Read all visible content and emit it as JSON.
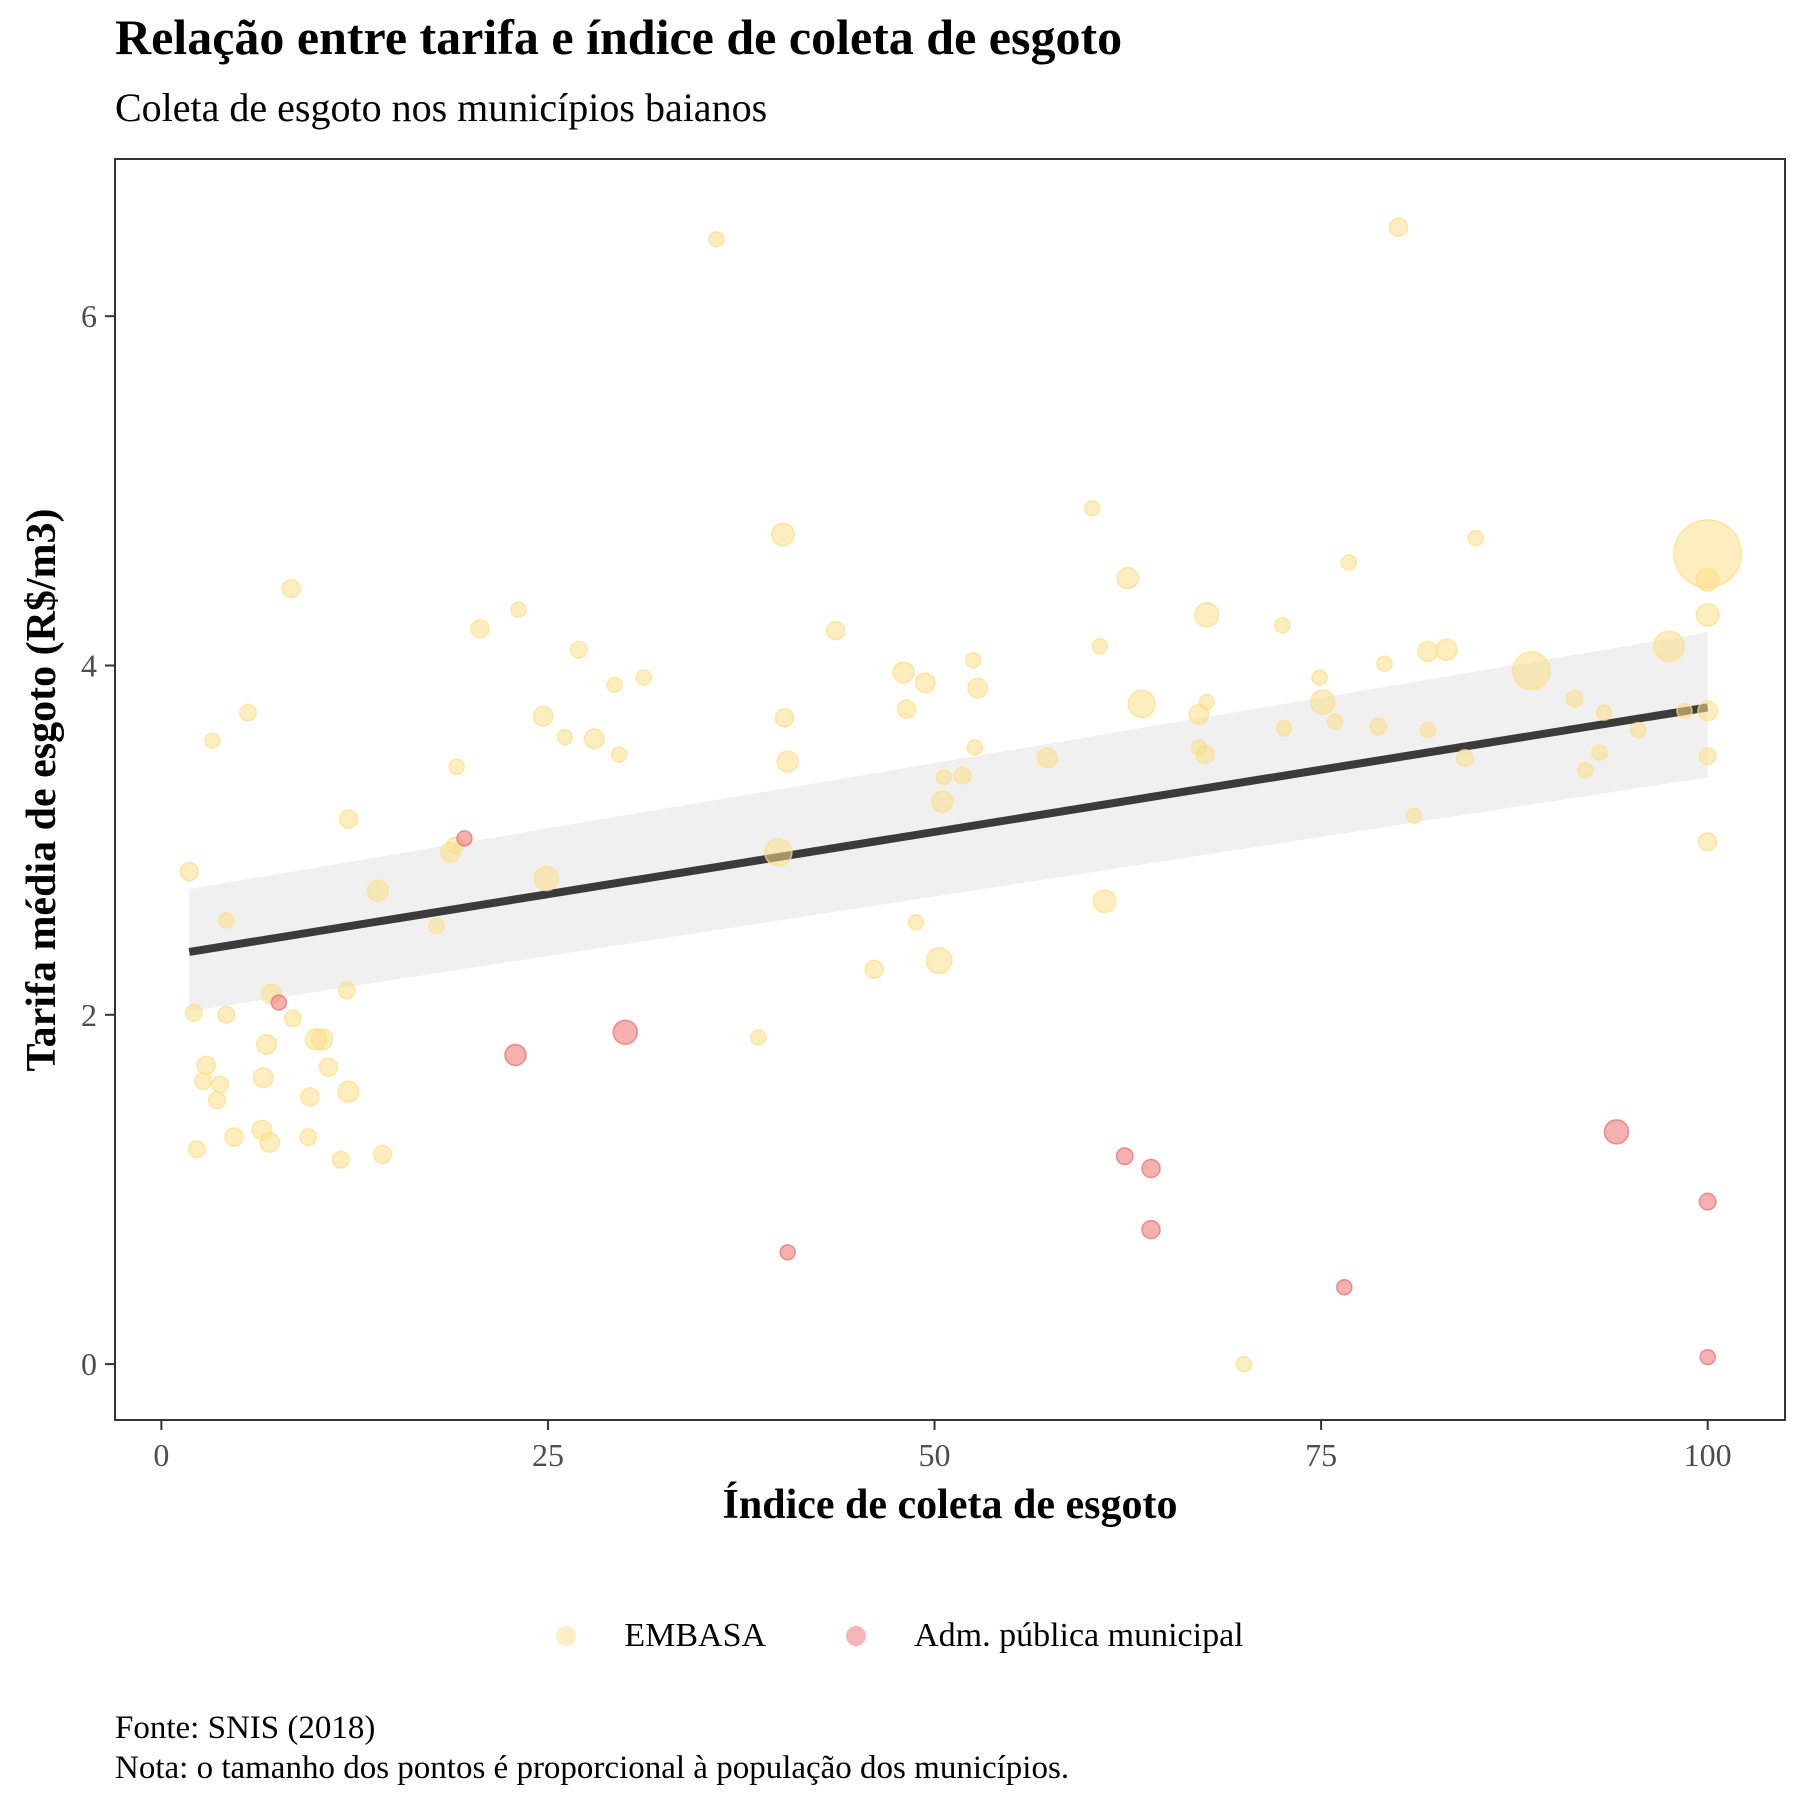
{
  "chart_data": {
    "type": "scatter",
    "title": "Relação entre tarifa e índice de coleta de esgoto",
    "subtitle": "Coleta de esgoto nos municípios baianos",
    "xlabel": "Índice de coleta de esgoto",
    "ylabel": "Tarifa média de esgoto (R$/m3)",
    "xlim": [
      -3,
      105
    ],
    "ylim": [
      -0.32,
      6.9
    ],
    "xticks": [
      0,
      25,
      50,
      75,
      100
    ],
    "yticks": [
      0,
      2,
      4,
      6
    ],
    "grid": false,
    "legend_position": "bottom",
    "size_scale": "proporcional à população",
    "caption": [
      "Fonte: SNIS (2018)",
      "Nota: o tamanho dos pontos é proporcional à população dos municípios."
    ],
    "trend": {
      "type": "linear",
      "color": "#3b3b3b",
      "band_color": "#f0f0f0",
      "x": [
        1.8,
        100
      ],
      "y": [
        2.36,
        3.76
      ],
      "band_lower": [
        2.02,
        3.36
      ],
      "band_upper": [
        2.72,
        4.19
      ]
    },
    "series": [
      {
        "name": "EMBASA",
        "color": "#fddf8b",
        "points": [
          [
            35.9,
            6.44,
            1
          ],
          [
            80.0,
            6.51,
            1.2
          ],
          [
            60.2,
            4.9,
            1
          ],
          [
            40.2,
            4.75,
            1.5
          ],
          [
            85.0,
            4.73,
            1
          ],
          [
            100,
            4.64,
            4.5
          ],
          [
            100,
            4.49,
            1.5
          ],
          [
            62.5,
            4.5,
            1.4
          ],
          [
            8.4,
            4.44,
            1.2
          ],
          [
            76.8,
            4.59,
            1
          ],
          [
            23.1,
            4.32,
            1
          ],
          [
            67.6,
            4.29,
            1.6
          ],
          [
            100,
            4.29,
            1.5
          ],
          [
            72.5,
            4.23,
            1
          ],
          [
            20.6,
            4.21,
            1.2
          ],
          [
            43.6,
            4.2,
            1.2
          ],
          [
            60.7,
            4.11,
            1
          ],
          [
            27.0,
            4.09,
            1.1
          ],
          [
            83.1,
            4.09,
            1.4
          ],
          [
            81.9,
            4.08,
            1.3
          ],
          [
            97.5,
            4.11,
            2
          ],
          [
            52.5,
            4.03,
            1
          ],
          [
            79.1,
            4.01,
            1
          ],
          [
            88.6,
            3.97,
            2.5
          ],
          [
            48.0,
            3.96,
            1.4
          ],
          [
            74.9,
            3.93,
            1
          ],
          [
            31.2,
            3.93,
            1
          ],
          [
            29.3,
            3.89,
            1
          ],
          [
            49.4,
            3.9,
            1.3
          ],
          [
            52.8,
            3.87,
            1.3
          ],
          [
            75.1,
            3.79,
            1.6
          ],
          [
            63.4,
            3.78,
            1.8
          ],
          [
            67.6,
            3.79,
            1
          ],
          [
            91.4,
            3.81,
            1.1
          ],
          [
            48.2,
            3.75,
            1.2
          ],
          [
            5.6,
            3.73,
            1.1
          ],
          [
            67.1,
            3.72,
            1.3
          ],
          [
            93.3,
            3.73,
            1
          ],
          [
            98.5,
            3.74,
            1
          ],
          [
            100,
            3.74,
            1.3
          ],
          [
            24.7,
            3.71,
            1.3
          ],
          [
            40.3,
            3.7,
            1.2
          ],
          [
            75.9,
            3.68,
            1
          ],
          [
            78.7,
            3.65,
            1.1
          ],
          [
            81.9,
            3.63,
            1
          ],
          [
            72.6,
            3.64,
            1
          ],
          [
            95.5,
            3.63,
            1
          ],
          [
            3.3,
            3.57,
            1
          ],
          [
            26.1,
            3.59,
            1
          ],
          [
            28.0,
            3.58,
            1.3
          ],
          [
            52.6,
            3.53,
            1
          ],
          [
            67.1,
            3.53,
            1
          ],
          [
            67.5,
            3.49,
            1.2
          ],
          [
            29.6,
            3.49,
            1
          ],
          [
            93.0,
            3.5,
            1
          ],
          [
            100,
            3.48,
            1.1
          ],
          [
            57.3,
            3.47,
            1.3
          ],
          [
            84.3,
            3.47,
            1.1
          ],
          [
            40.5,
            3.45,
            1.4
          ],
          [
            19.1,
            3.42,
            1
          ],
          [
            92.1,
            3.4,
            1
          ],
          [
            50.6,
            3.36,
            1
          ],
          [
            51.8,
            3.37,
            1.1
          ],
          [
            50.5,
            3.22,
            1.4
          ],
          [
            81.0,
            3.14,
            1
          ],
          [
            12.1,
            3.12,
            1.2
          ],
          [
            19.0,
            2.97,
            1.1
          ],
          [
            18.7,
            2.93,
            1.3
          ],
          [
            39.9,
            2.93,
            1.8
          ],
          [
            100,
            2.99,
            1.2
          ],
          [
            1.8,
            2.82,
            1.2
          ],
          [
            24.9,
            2.78,
            1.6
          ],
          [
            14.0,
            2.71,
            1.4
          ],
          [
            61.0,
            2.65,
            1.5
          ],
          [
            4.2,
            2.54,
            1
          ],
          [
            17.8,
            2.51,
            1
          ],
          [
            48.8,
            2.53,
            1
          ],
          [
            50.3,
            2.31,
            1.7
          ],
          [
            46.1,
            2.26,
            1.2
          ],
          [
            12.0,
            2.14,
            1.1
          ],
          [
            7.1,
            2.12,
            1.3
          ],
          [
            2.1,
            2.01,
            1.1
          ],
          [
            4.2,
            2.0,
            1.1
          ],
          [
            8.5,
            1.98,
            1.1
          ],
          [
            10.0,
            1.86,
            1.4
          ],
          [
            10.4,
            1.86,
            1.4
          ],
          [
            6.8,
            1.83,
            1.3
          ],
          [
            38.6,
            1.87,
            1
          ],
          [
            2.9,
            1.71,
            1.2
          ],
          [
            10.8,
            1.7,
            1.2
          ],
          [
            6.6,
            1.64,
            1.3
          ],
          [
            2.7,
            1.62,
            1.1
          ],
          [
            3.8,
            1.6,
            1.1
          ],
          [
            12.1,
            1.56,
            1.4
          ],
          [
            9.6,
            1.53,
            1.2
          ],
          [
            3.6,
            1.51,
            1.1
          ],
          [
            6.5,
            1.34,
            1.3
          ],
          [
            4.7,
            1.3,
            1.2
          ],
          [
            7.0,
            1.27,
            1.3
          ],
          [
            9.5,
            1.3,
            1.1
          ],
          [
            2.3,
            1.23,
            1.1
          ],
          [
            11.6,
            1.17,
            1.1
          ],
          [
            14.3,
            1.2,
            1.2
          ],
          [
            70.0,
            0.0,
            1
          ]
        ]
      },
      {
        "name": "Adm. pública municipal",
        "color": "#ec6f6f",
        "points": [
          [
            19.6,
            3.01,
            1
          ],
          [
            7.6,
            2.07,
            1
          ],
          [
            22.9,
            1.77,
            1.4
          ],
          [
            30.0,
            1.9,
            1.6
          ],
          [
            62.3,
            1.19,
            1.1
          ],
          [
            64.0,
            1.12,
            1.2
          ],
          [
            94.1,
            1.33,
            1.6
          ],
          [
            100,
            0.93,
            1.1
          ],
          [
            40.5,
            0.64,
            1
          ],
          [
            64.0,
            0.77,
            1.2
          ],
          [
            76.5,
            0.44,
            1
          ],
          [
            100,
            0.04,
            1
          ]
        ]
      }
    ]
  }
}
